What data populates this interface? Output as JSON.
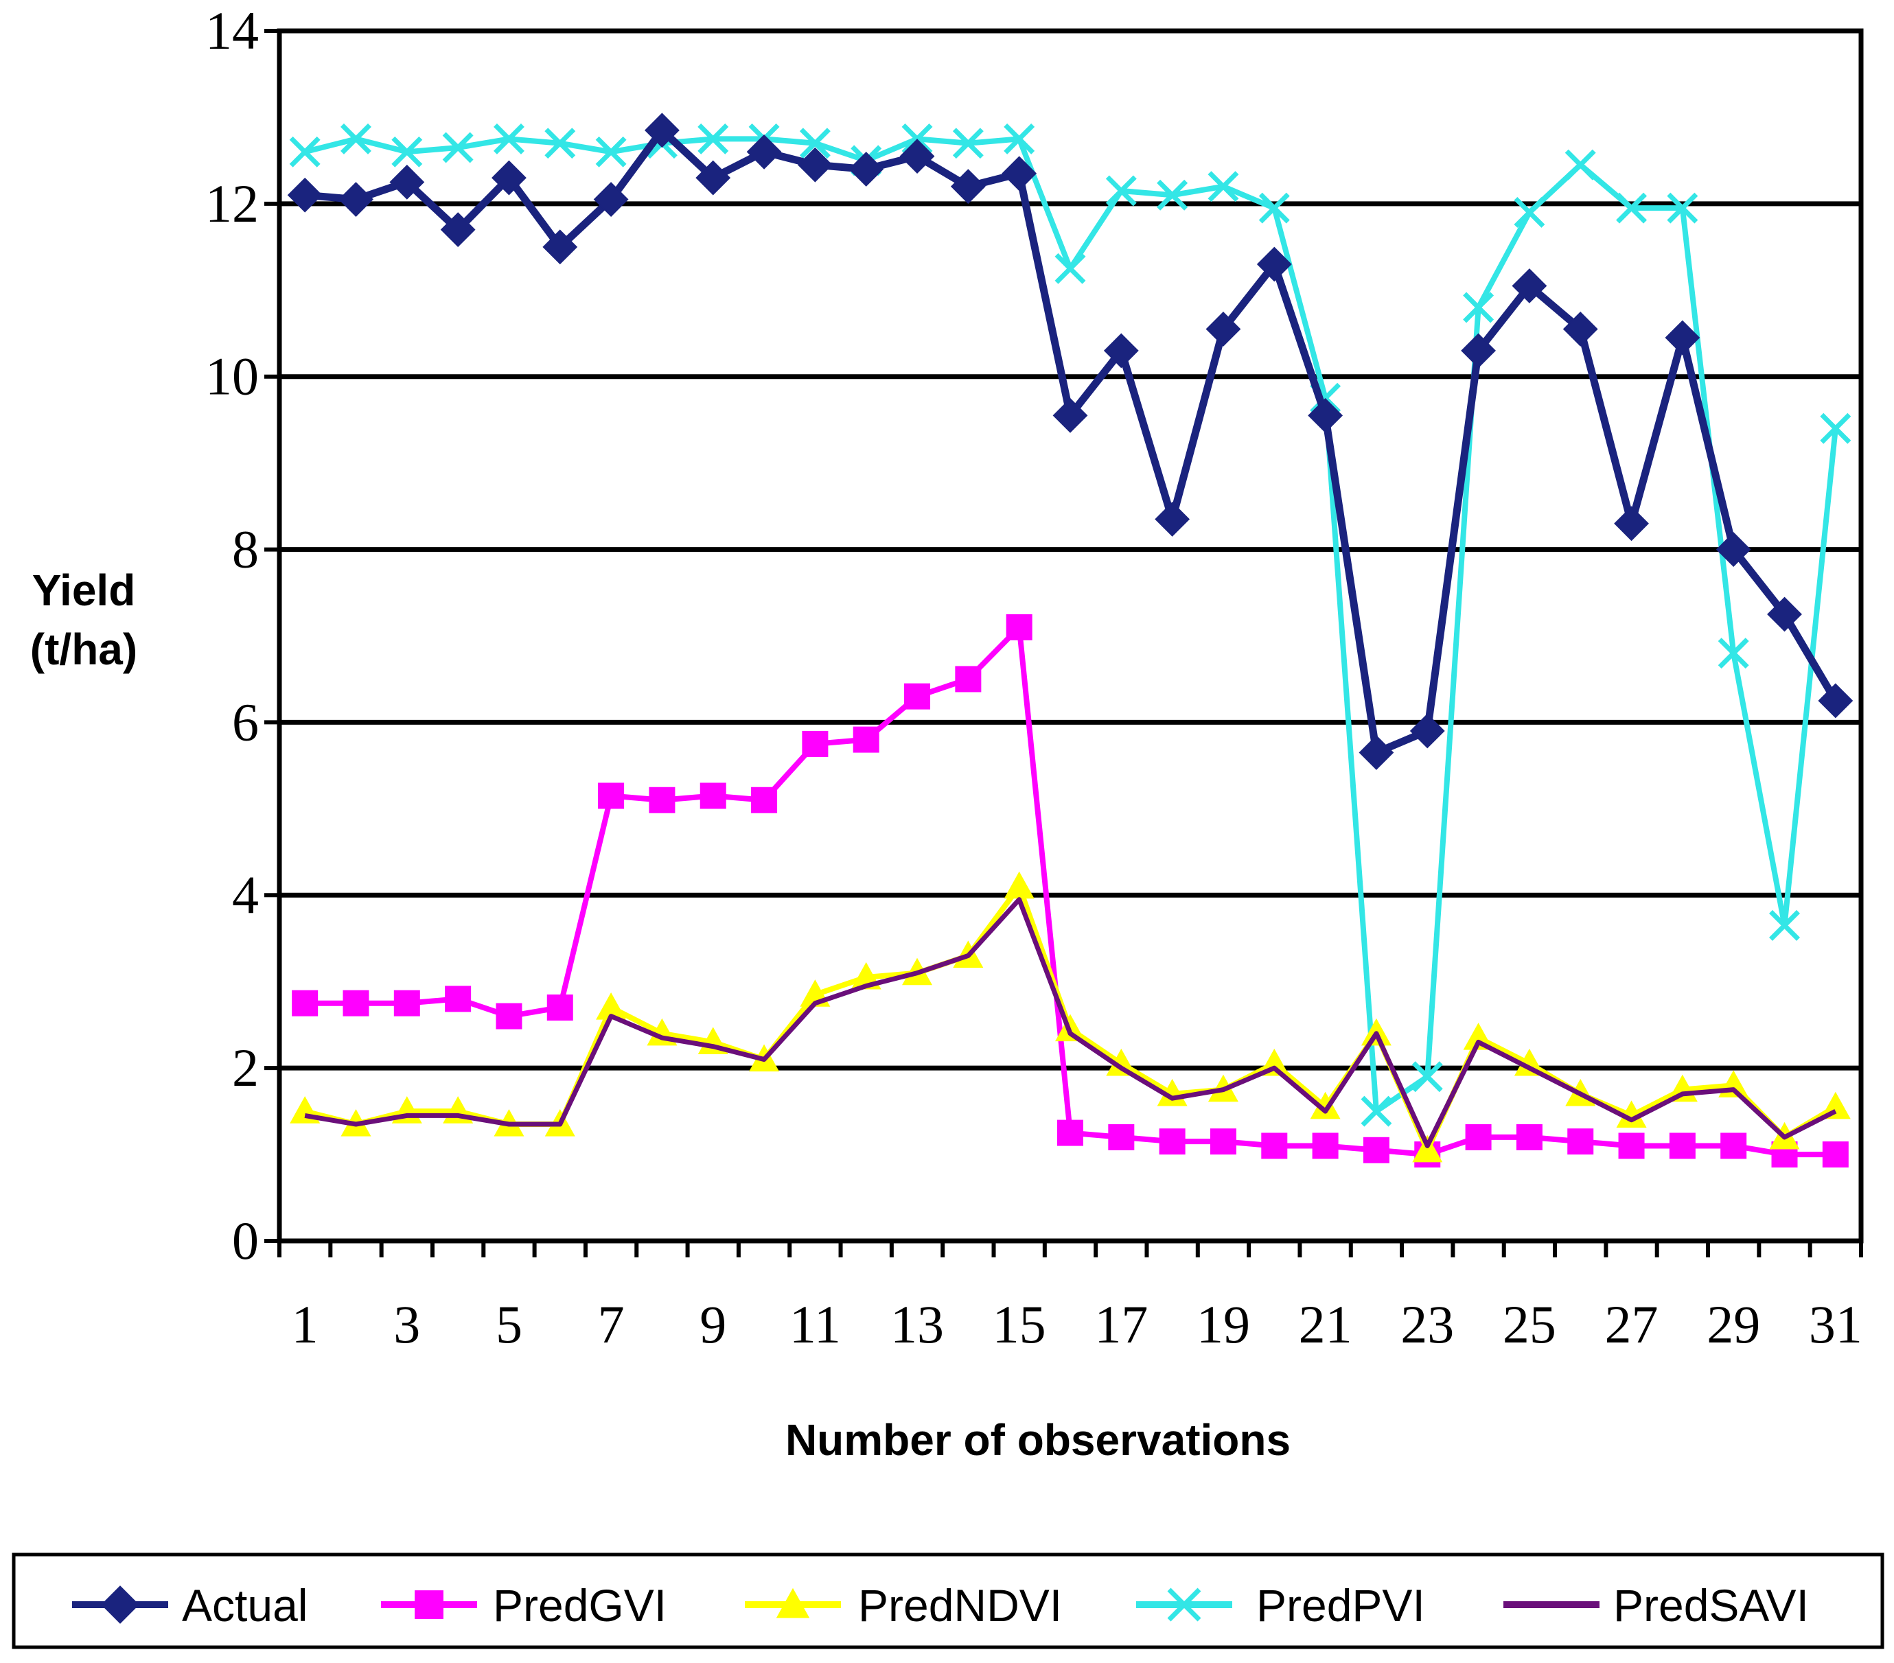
{
  "chart_data": {
    "type": "line",
    "title": "",
    "xlabel": "Number of observations",
    "ylabel": [
      "Yield",
      "(t/ha)"
    ],
    "ylim": [
      0,
      14
    ],
    "yticks": [
      0,
      2,
      4,
      6,
      8,
      10,
      12,
      14
    ],
    "xlim": [
      1,
      31
    ],
    "xtick_labels": [
      1,
      3,
      5,
      7,
      9,
      11,
      13,
      15,
      17,
      19,
      21,
      23,
      25,
      27,
      29,
      31
    ],
    "grid": "horizontal",
    "legend_position": "bottom",
    "x": [
      1,
      2,
      3,
      4,
      5,
      6,
      7,
      8,
      9,
      10,
      11,
      12,
      13,
      14,
      15,
      16,
      17,
      18,
      19,
      20,
      21,
      22,
      23,
      24,
      25,
      26,
      27,
      28,
      29,
      30,
      31
    ],
    "series": [
      {
        "name": "Actual",
        "color": "#1a237e",
        "marker": "diamond",
        "values": [
          12.1,
          12.05,
          12.25,
          11.7,
          12.3,
          11.5,
          12.05,
          12.85,
          12.3,
          12.6,
          12.45,
          12.4,
          12.55,
          12.2,
          12.35,
          9.55,
          10.3,
          8.35,
          10.55,
          11.3,
          9.55,
          5.65,
          5.9,
          10.3,
          11.05,
          10.55,
          8.3,
          10.45,
          8.0,
          7.25,
          6.25
        ]
      },
      {
        "name": "PredGVI",
        "color": "#ff00ff",
        "marker": "square",
        "values": [
          2.75,
          2.75,
          2.75,
          2.8,
          2.6,
          2.7,
          5.15,
          5.1,
          5.15,
          5.1,
          5.75,
          5.8,
          6.3,
          6.5,
          7.1,
          1.25,
          1.2,
          1.15,
          1.15,
          1.1,
          1.1,
          1.05,
          1.0,
          1.2,
          1.2,
          1.15,
          1.1,
          1.1,
          1.1,
          1.0,
          1.0
        ]
      },
      {
        "name": "PredNDVI",
        "color": "#ffff00",
        "marker": "triangle",
        "values": [
          1.5,
          1.35,
          1.5,
          1.5,
          1.35,
          1.35,
          2.7,
          2.4,
          2.3,
          2.1,
          2.85,
          3.05,
          3.1,
          3.3,
          4.1,
          2.45,
          2.05,
          1.7,
          1.75,
          2.05,
          1.55,
          2.4,
          1.05,
          2.35,
          2.05,
          1.7,
          1.45,
          1.75,
          1.8,
          1.2,
          1.55
        ]
      },
      {
        "name": "PredPVI",
        "color": "#33e6e6",
        "marker": "x",
        "values": [
          12.6,
          12.75,
          12.6,
          12.65,
          12.75,
          12.7,
          12.6,
          12.7,
          12.75,
          12.75,
          12.7,
          12.5,
          12.75,
          12.7,
          12.75,
          11.25,
          12.15,
          12.1,
          12.2,
          11.95,
          9.75,
          1.5,
          1.9,
          10.8,
          11.9,
          12.45,
          11.95,
          11.95,
          6.8,
          3.65,
          9.4
        ]
      },
      {
        "name": "PredSAVI",
        "color": "#6a0f7a",
        "marker": "none",
        "values": [
          1.45,
          1.35,
          1.45,
          1.45,
          1.35,
          1.35,
          2.6,
          2.35,
          2.25,
          2.1,
          2.75,
          2.95,
          3.1,
          3.3,
          3.95,
          2.4,
          2.0,
          1.65,
          1.75,
          2.0,
          1.5,
          2.4,
          1.1,
          2.3,
          2.0,
          1.7,
          1.4,
          1.7,
          1.75,
          1.2,
          1.5
        ]
      }
    ]
  }
}
